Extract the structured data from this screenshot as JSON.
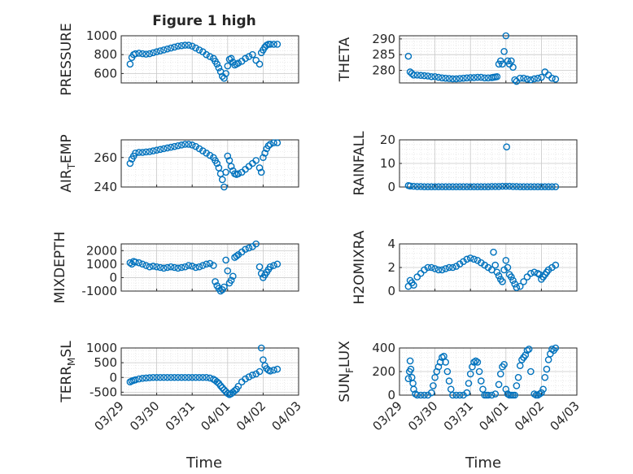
{
  "figure_title": "Figure 1 high",
  "x_axis_label": "Time",
  "x_tick_labels": [
    "03/29",
    "03/30",
    "03/31",
    "04/01",
    "04/02",
    "04/03"
  ],
  "marker_color": "#0072bd",
  "chart_data": [
    {
      "type": "scatter",
      "title": "Figure 1 high",
      "ylabel": "PRESSURE",
      "xlabel": "",
      "ylim": [
        500,
        1000
      ],
      "yticks": [
        600,
        800,
        1000
      ],
      "ytick_labels": [
        "600",
        "800",
        "1000"
      ],
      "xlim": [
        0,
        5
      ],
      "minor_grid": true,
      "x": [
        0.25,
        0.3,
        0.35,
        0.4,
        0.5,
        0.6,
        0.7,
        0.8,
        0.9,
        1.0,
        1.1,
        1.2,
        1.3,
        1.4,
        1.5,
        1.6,
        1.7,
        1.8,
        1.9,
        2.0,
        2.1,
        2.2,
        2.3,
        2.4,
        2.5,
        2.6,
        2.65,
        2.7,
        2.75,
        2.8,
        2.85,
        2.9,
        2.95,
        3.0,
        3.05,
        3.1,
        3.15,
        3.2,
        3.25,
        3.3,
        3.4,
        3.5,
        3.6,
        3.7,
        3.8,
        3.9,
        3.95,
        4.0,
        4.05,
        4.1,
        4.15,
        4.2,
        4.3,
        4.4
      ],
      "y": [
        700,
        770,
        800,
        810,
        815,
        810,
        805,
        810,
        820,
        830,
        840,
        850,
        860,
        870,
        880,
        890,
        895,
        900,
        900,
        890,
        870,
        850,
        830,
        800,
        780,
        760,
        730,
        700,
        660,
        620,
        570,
        550,
        600,
        680,
        750,
        760,
        720,
        690,
        700,
        710,
        730,
        760,
        780,
        800,
        740,
        700,
        820,
        850,
        880,
        900,
        910,
        910,
        910,
        910
      ]
    },
    {
      "type": "scatter",
      "title": "",
      "ylabel": "THETA",
      "xlabel": "",
      "ylim": [
        276,
        291
      ],
      "yticks": [
        280,
        285,
        290
      ],
      "ytick_labels": [
        "280",
        "285",
        "290"
      ],
      "xlim": [
        0,
        5
      ],
      "minor_grid": true,
      "x": [
        0.25,
        0.3,
        0.35,
        0.4,
        0.5,
        0.6,
        0.7,
        0.8,
        0.9,
        1.0,
        1.1,
        1.2,
        1.3,
        1.4,
        1.5,
        1.6,
        1.7,
        1.8,
        1.9,
        2.0,
        2.1,
        2.2,
        2.3,
        2.4,
        2.5,
        2.6,
        2.65,
        2.7,
        2.75,
        2.8,
        2.85,
        2.9,
        2.95,
        3.0,
        3.05,
        3.1,
        3.15,
        3.2,
        3.25,
        3.3,
        3.4,
        3.5,
        3.6,
        3.7,
        3.8,
        3.9,
        4.0,
        4.1,
        4.2,
        4.3,
        4.4
      ],
      "y": [
        284.5,
        279.5,
        279,
        278.5,
        278.5,
        278.4,
        278.3,
        278.2,
        278,
        278,
        277.8,
        277.6,
        277.5,
        277.4,
        277.3,
        277.3,
        277.4,
        277.5,
        277.6,
        277.7,
        277.7,
        277.8,
        277.8,
        277.6,
        277.6,
        277.7,
        277.8,
        277.9,
        278,
        282,
        283,
        282,
        286,
        291,
        283,
        282,
        283,
        281,
        277,
        276.5,
        277.5,
        277.5,
        277.2,
        277,
        277.3,
        277.5,
        277.8,
        279.5,
        278.5,
        277.5,
        277.2
      ]
    },
    {
      "type": "scatter",
      "title": "",
      "ylabel": "AIR_TEMP",
      "xlabel": "",
      "ylim": [
        240,
        272
      ],
      "yticks": [
        240,
        260
      ],
      "ytick_labels": [
        "240",
        "260"
      ],
      "xlim": [
        0,
        5
      ],
      "minor_grid": true,
      "x": [
        0.25,
        0.3,
        0.35,
        0.4,
        0.5,
        0.6,
        0.7,
        0.8,
        0.9,
        1.0,
        1.1,
        1.2,
        1.3,
        1.4,
        1.5,
        1.6,
        1.7,
        1.8,
        1.9,
        2.0,
        2.1,
        2.2,
        2.3,
        2.4,
        2.5,
        2.6,
        2.65,
        2.7,
        2.75,
        2.8,
        2.85,
        2.9,
        2.95,
        3.0,
        3.05,
        3.1,
        3.15,
        3.2,
        3.25,
        3.3,
        3.4,
        3.5,
        3.6,
        3.7,
        3.8,
        3.9,
        3.95,
        4.0,
        4.05,
        4.1,
        4.15,
        4.2,
        4.3,
        4.4
      ],
      "y": [
        256,
        259,
        261,
        263,
        263.5,
        263.5,
        263.8,
        264,
        264.5,
        265,
        265.5,
        266,
        266.5,
        267,
        267.5,
        268,
        268.5,
        269,
        269,
        268.5,
        267.5,
        266,
        264.5,
        263,
        261.5,
        260,
        258,
        256,
        253,
        249,
        245,
        240,
        250,
        261,
        258,
        254,
        251,
        249,
        248.5,
        249,
        250,
        252,
        254,
        256,
        258,
        253,
        250,
        260,
        263,
        266,
        268,
        269,
        270,
        270
      ]
    },
    {
      "type": "scatter",
      "title": "",
      "ylabel": "RAINFALL",
      "xlabel": "",
      "ylim": [
        0,
        20
      ],
      "yticks": [
        0,
        10,
        20
      ],
      "ytick_labels": [
        "0",
        "10",
        "20"
      ],
      "xlim": [
        0,
        5
      ],
      "minor_grid": true,
      "x": [
        0.25,
        0.3,
        0.4,
        0.5,
        0.6,
        0.7,
        0.8,
        0.9,
        1.0,
        1.1,
        1.2,
        1.3,
        1.4,
        1.5,
        1.6,
        1.7,
        1.8,
        1.9,
        2.0,
        2.1,
        2.2,
        2.3,
        2.4,
        2.5,
        2.6,
        2.7,
        2.8,
        2.9,
        3.0,
        3.02,
        3.1,
        3.2,
        3.3,
        3.4,
        3.5,
        3.6,
        3.7,
        3.8,
        3.9,
        4.0,
        4.1,
        4.2,
        4.3,
        4.4
      ],
      "y": [
        0.6,
        0.4,
        0.3,
        0.2,
        0.2,
        0.1,
        0.1,
        0.1,
        0.1,
        0.1,
        0.1,
        0.1,
        0.1,
        0.1,
        0.1,
        0.1,
        0.1,
        0.1,
        0.1,
        0.1,
        0.1,
        0.1,
        0.1,
        0.1,
        0.2,
        0.2,
        0.2,
        0.3,
        0.3,
        17,
        0.3,
        0.2,
        0.2,
        0.1,
        0.1,
        0.1,
        0.1,
        0.1,
        0.1,
        0.1,
        0.1,
        0.1,
        0.1,
        0.1
      ]
    },
    {
      "type": "scatter",
      "title": "",
      "ylabel": "MIXDEPTH",
      "xlabel": "",
      "ylim": [
        -1000,
        2500
      ],
      "yticks": [
        -1000,
        0,
        1000,
        2000
      ],
      "ytick_labels": [
        "-1000",
        "0",
        "1000",
        "2000"
      ],
      "xlim": [
        0,
        5
      ],
      "minor_grid": true,
      "x": [
        0.25,
        0.3,
        0.35,
        0.4,
        0.5,
        0.6,
        0.7,
        0.8,
        0.9,
        1.0,
        1.1,
        1.2,
        1.3,
        1.4,
        1.5,
        1.6,
        1.7,
        1.8,
        1.9,
        2.0,
        2.1,
        2.2,
        2.3,
        2.4,
        2.5,
        2.6,
        2.65,
        2.7,
        2.75,
        2.8,
        2.85,
        2.9,
        2.95,
        3.0,
        3.05,
        3.1,
        3.15,
        3.2,
        3.25,
        3.3,
        3.4,
        3.5,
        3.6,
        3.7,
        3.8,
        3.9,
        3.95,
        4.0,
        4.05,
        4.1,
        4.15,
        4.2,
        4.3,
        4.4
      ],
      "y": [
        1100,
        1000,
        1200,
        1150,
        1100,
        1000,
        900,
        800,
        850,
        800,
        750,
        700,
        750,
        800,
        750,
        700,
        750,
        800,
        900,
        850,
        750,
        800,
        900,
        1000,
        1050,
        900,
        -300,
        -600,
        -800,
        -1000,
        -900,
        -700,
        1300,
        500,
        -400,
        -200,
        100,
        1500,
        1600,
        1700,
        1900,
        2100,
        2200,
        2300,
        2500,
        800,
        300,
        0,
        200,
        400,
        600,
        800,
        900,
        1000
      ]
    },
    {
      "type": "scatter",
      "title": "",
      "ylabel": "H2OMIXRA",
      "xlabel": "",
      "ylim": [
        0,
        4
      ],
      "yticks": [
        0,
        2,
        4
      ],
      "ytick_labels": [
        "0",
        "2",
        "4"
      ],
      "xlim": [
        0,
        5
      ],
      "minor_grid": true,
      "x": [
        0.25,
        0.3,
        0.35,
        0.4,
        0.5,
        0.6,
        0.7,
        0.8,
        0.9,
        1.0,
        1.1,
        1.2,
        1.3,
        1.4,
        1.5,
        1.6,
        1.7,
        1.8,
        1.9,
        2.0,
        2.1,
        2.2,
        2.3,
        2.4,
        2.5,
        2.6,
        2.65,
        2.7,
        2.75,
        2.8,
        2.85,
        2.9,
        2.95,
        3.0,
        3.05,
        3.1,
        3.15,
        3.2,
        3.25,
        3.3,
        3.4,
        3.5,
        3.6,
        3.7,
        3.8,
        3.9,
        3.95,
        4.0,
        4.05,
        4.1,
        4.15,
        4.2,
        4.3,
        4.4
      ],
      "y": [
        0.4,
        0.9,
        0.7,
        0.5,
        1.2,
        1.5,
        1.8,
        2.0,
        2.0,
        1.9,
        1.8,
        1.8,
        1.9,
        2.0,
        2.0,
        2.1,
        2.3,
        2.5,
        2.7,
        2.8,
        2.7,
        2.6,
        2.4,
        2.2,
        2.0,
        1.8,
        3.3,
        2.2,
        1.6,
        1.3,
        1.0,
        0.8,
        1.8,
        2.6,
        2.0,
        1.4,
        1.2,
        0.9,
        0.6,
        0.3,
        0.4,
        0.8,
        1.2,
        1.5,
        1.6,
        1.5,
        1.4,
        1.0,
        1.2,
        1.4,
        1.6,
        1.8,
        2.0,
        2.2
      ]
    },
    {
      "type": "scatter",
      "title": "",
      "ylabel": "TERR_MSL",
      "xlabel": "Time",
      "ylim": [
        -600,
        1000
      ],
      "yticks": [
        -500,
        0,
        500,
        1000
      ],
      "ytick_labels": [
        "-500",
        "0",
        "500",
        "1000"
      ],
      "xlim": [
        0,
        5
      ],
      "minor_grid": true,
      "x": [
        0.25,
        0.3,
        0.35,
        0.4,
        0.5,
        0.6,
        0.7,
        0.8,
        0.9,
        1.0,
        1.1,
        1.2,
        1.3,
        1.4,
        1.5,
        1.6,
        1.7,
        1.8,
        1.9,
        2.0,
        2.1,
        2.2,
        2.3,
        2.4,
        2.5,
        2.6,
        2.65,
        2.7,
        2.75,
        2.8,
        2.85,
        2.9,
        2.95,
        3.0,
        3.05,
        3.1,
        3.15,
        3.2,
        3.25,
        3.3,
        3.4,
        3.5,
        3.6,
        3.7,
        3.8,
        3.9,
        3.95,
        4.0,
        4.05,
        4.1,
        4.15,
        4.2,
        4.3,
        4.4
      ],
      "y": [
        -150,
        -120,
        -100,
        -80,
        -50,
        -30,
        -20,
        -10,
        0,
        0,
        0,
        0,
        0,
        0,
        0,
        0,
        0,
        0,
        0,
        0,
        0,
        0,
        0,
        0,
        -20,
        -60,
        -100,
        -150,
        -200,
        -280,
        -350,
        -420,
        -480,
        -540,
        -580,
        -550,
        -500,
        -450,
        -400,
        -300,
        -150,
        -50,
        20,
        80,
        120,
        200,
        1000,
        600,
        400,
        300,
        250,
        220,
        250,
        280
      ]
    },
    {
      "type": "scatter",
      "title": "",
      "ylabel": "SUN_FLUX",
      "xlabel": "Time",
      "ylim": [
        0,
        400
      ],
      "yticks": [
        0,
        200,
        400
      ],
      "ytick_labels": [
        "0",
        "200",
        "400"
      ],
      "xlim": [
        0,
        5
      ],
      "minor_grid": true,
      "x": [
        0.25,
        0.28,
        0.3,
        0.32,
        0.35,
        0.38,
        0.4,
        0.45,
        0.5,
        0.6,
        0.7,
        0.8,
        0.9,
        0.95,
        1.0,
        1.05,
        1.1,
        1.15,
        1.2,
        1.25,
        1.3,
        1.35,
        1.4,
        1.45,
        1.5,
        1.6,
        1.7,
        1.8,
        1.9,
        1.95,
        2.0,
        2.05,
        2.1,
        2.15,
        2.2,
        2.25,
        2.3,
        2.35,
        2.4,
        2.45,
        2.5,
        2.6,
        2.7,
        2.8,
        2.85,
        2.9,
        2.95,
        3.0,
        3.05,
        3.1,
        3.15,
        3.2,
        3.25,
        3.3,
        3.35,
        3.4,
        3.45,
        3.5,
        3.55,
        3.6,
        3.65,
        3.7,
        3.8,
        3.85,
        3.9,
        3.95,
        4.0,
        4.05,
        4.1,
        4.15,
        4.2,
        4.25,
        4.3,
        4.35,
        4.4
      ],
      "y": [
        140,
        200,
        290,
        220,
        150,
        100,
        50,
        10,
        0,
        0,
        0,
        0,
        20,
        80,
        150,
        200,
        240,
        280,
        320,
        330,
        280,
        200,
        120,
        50,
        0,
        0,
        0,
        0,
        20,
        100,
        180,
        240,
        280,
        290,
        280,
        200,
        120,
        50,
        0,
        0,
        0,
        0,
        10,
        90,
        180,
        240,
        260,
        50,
        10,
        0,
        0,
        0,
        0,
        80,
        150,
        250,
        300,
        320,
        340,
        380,
        390,
        200,
        10,
        0,
        0,
        10,
        20,
        50,
        150,
        220,
        300,
        350,
        390,
        380,
        400
      ]
    }
  ]
}
